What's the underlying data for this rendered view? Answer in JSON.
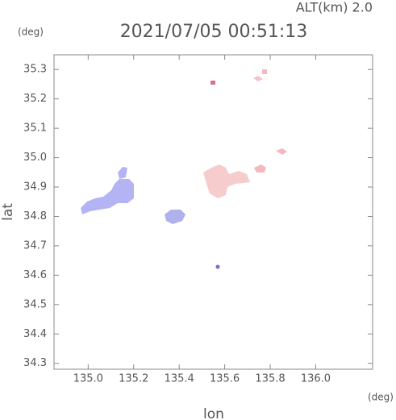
{
  "chart_data": {
    "type": "map",
    "title": "2021/07/05 00:51:13",
    "subtitle": "ALT(km) 2.0",
    "y_unit": "(deg)",
    "x_unit": "(deg)",
    "xlabel": "lon",
    "ylabel": "lat",
    "xlim": [
      134.85,
      136.25
    ],
    "ylim": [
      34.28,
      35.35
    ],
    "xticks": [
      {
        "value": 135,
        "label": "135.0"
      },
      135.2,
      135.4,
      135.6,
      135.8,
      {
        "value": 136,
        "label": "136.0"
      }
    ],
    "yticks": [
      34.3,
      34.4,
      34.5,
      34.6,
      34.7,
      34.8,
      34.9,
      {
        "value": 35,
        "label": "35.0"
      },
      35.1,
      35.2,
      35.3
    ],
    "grid": false
  }
}
